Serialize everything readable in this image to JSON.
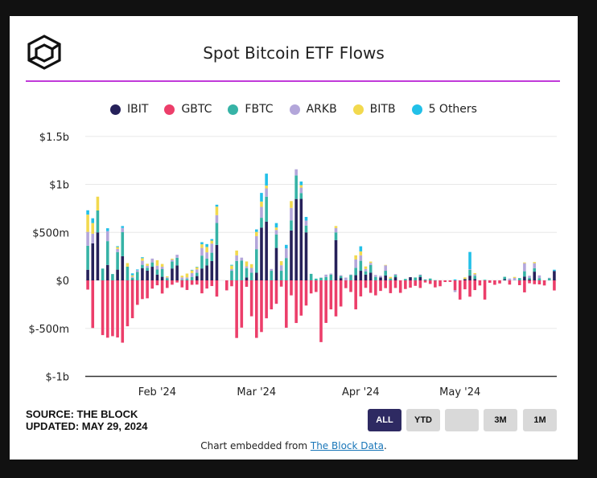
{
  "header": {
    "title": "Spot Bitcoin ETF Flows"
  },
  "legend": [
    {
      "label": "IBIT",
      "color": "#26215a"
    },
    {
      "label": "GBTC",
      "color": "#ec3e6a"
    },
    {
      "label": "FBTC",
      "color": "#36b3a6"
    },
    {
      "label": "ARKB",
      "color": "#b3a6da"
    },
    {
      "label": "BITB",
      "color": "#f2d94e"
    },
    {
      "label": "5 Others",
      "color": "#22c0e8"
    }
  ],
  "footer": {
    "source": "SOURCE: THE BLOCK",
    "updated": "UPDATED: MAY 29, 2024",
    "embed_prefix": "Chart embedded from ",
    "embed_link": "The Block Data",
    "embed_suffix": "."
  },
  "range_buttons": [
    "ALL",
    "YTD",
    "",
    "3M",
    "1M"
  ],
  "range_active": "ALL",
  "chart_data": {
    "type": "bar",
    "stacked": true,
    "title": "Spot Bitcoin ETF Flows",
    "units": "USD (m)",
    "ylim": [
      -1000,
      1500
    ],
    "yticks": [
      -1000,
      -500,
      0,
      500,
      1000,
      1500
    ],
    "ytick_labels": [
      "$-1b",
      "$-500m",
      "$0",
      "$500m",
      "$1b",
      "$1.5b"
    ],
    "xtick_labels": [
      {
        "label": "Feb '24",
        "index": 14
      },
      {
        "label": "Mar '24",
        "index": 34
      },
      {
        "label": "Apr '24",
        "index": 55
      },
      {
        "label": "May '24",
        "index": 75
      }
    ],
    "days": 95,
    "series_order": [
      "IBIT",
      "GBTC",
      "FBTC",
      "ARKB",
      "BITB",
      "5 Others"
    ],
    "series": [
      {
        "name": "IBIT",
        "values": [
          111,
          386,
          500,
          0,
          161,
          0,
          112,
          252,
          0,
          5,
          0,
          128,
          101,
          142,
          60,
          37,
          0,
          124,
          156,
          0,
          0,
          0,
          45,
          124,
          156,
          201,
          369,
          0,
          0,
          0,
          0,
          0,
          30,
          0,
          80,
          550,
          612,
          0,
          338,
          0,
          0,
          520,
          848,
          849,
          500,
          0,
          0,
          0,
          0,
          0,
          420,
          24,
          0,
          0,
          54,
          100,
          60,
          80,
          0,
          31,
          51,
          0,
          33,
          0,
          0,
          33,
          0,
          34,
          0,
          0,
          0,
          0,
          0,
          0,
          0,
          0,
          14,
          49,
          15,
          0,
          0,
          0,
          0,
          0,
          12,
          0,
          0,
          0,
          40,
          10,
          91,
          0,
          0,
          0,
          98
        ]
      },
      {
        "name": "GBTC",
        "values": [
          -96,
          -496,
          0,
          -570,
          -597,
          -581,
          -595,
          -649,
          -478,
          -394,
          -255,
          -195,
          -187,
          -86,
          -51,
          -137,
          -79,
          -45,
          -22,
          -73,
          -100,
          -46,
          -44,
          -135,
          -85,
          -59,
          -169,
          0,
          -104,
          -61,
          -600,
          -492,
          -67,
          -374,
          -599,
          -538,
          -395,
          -302,
          -244,
          -65,
          -493,
          -156,
          -444,
          -367,
          -262,
          -136,
          -121,
          -643,
          -443,
          -302,
          -375,
          -272,
          -81,
          -121,
          -302,
          -167,
          -78,
          -130,
          -156,
          -110,
          -81,
          -133,
          -79,
          -130,
          -90,
          -76,
          -57,
          -79,
          -22,
          -37,
          -73,
          -61,
          -17,
          -16,
          -103,
          -200,
          -93,
          -170,
          -101,
          -53,
          -200,
          -25,
          -46,
          -32,
          0,
          -44,
          0,
          -50,
          -125,
          -30,
          -40,
          -42,
          -53,
          0,
          -105
        ]
      },
      {
        "name": "FBTC",
        "values": [
          250,
          0,
          228,
          123,
          248,
          66,
          183,
          250,
          143,
          22,
          89,
          34,
          30,
          45,
          53,
          80,
          21,
          72,
          80,
          7,
          14,
          36,
          34,
          134,
          70,
          87,
          229,
          0,
          0,
          100,
          202,
          207,
          97,
          80,
          245,
          102,
          260,
          100,
          140,
          100,
          233,
          105,
          245,
          61,
          71,
          68,
          18,
          27,
          35,
          60,
          80,
          21,
          0,
          57,
          77,
          104,
          34,
          81,
          36,
          0,
          49,
          20,
          23,
          0,
          15,
          0,
          30,
          20,
          10,
          19,
          2,
          0,
          0,
          0,
          0,
          0,
          0,
          60,
          33,
          0,
          6,
          0,
          0,
          0,
          25,
          0,
          0,
          24,
          55,
          15,
          36,
          23,
          0,
          21,
          0
        ]
      },
      {
        "name": "ARKB",
        "values": [
          144,
          100,
          0,
          0,
          104,
          0,
          32,
          44,
          0,
          11,
          17,
          42,
          20,
          40,
          40,
          25,
          11,
          20,
          31,
          24,
          17,
          40,
          36,
          80,
          66,
          95,
          81,
          0,
          0,
          17,
          58,
          30,
          19,
          50,
          136,
          114,
          86,
          19,
          47,
          58,
          100,
          130,
          64,
          56,
          52,
          0,
          0,
          3,
          25,
          11,
          45,
          9,
          29,
          4,
          87,
          57,
          25,
          20,
          20,
          17,
          56,
          0,
          10,
          0,
          0,
          0,
          0,
          7,
          0,
          0,
          0,
          0,
          0,
          0,
          -19,
          0,
          0,
          7,
          15,
          0,
          0,
          0,
          0,
          0,
          0,
          19,
          25,
          0,
          84,
          23,
          52,
          29,
          0,
          6,
          0
        ]
      },
      {
        "name": "BITB",
        "values": [
          180,
          111,
          144,
          0,
          0,
          0,
          20,
          0,
          37,
          15,
          0,
          27,
          22,
          0,
          57,
          29,
          11,
          10,
          0,
          18,
          40,
          28,
          22,
          38,
          56,
          31,
          89,
          0,
          0,
          37,
          51,
          0,
          51,
          39,
          44,
          55,
          30,
          0,
          26,
          42,
          0,
          71,
          0,
          26,
          0,
          0,
          0,
          0,
          0,
          0,
          21,
          0,
          0,
          0,
          43,
          41,
          26,
          15,
          0,
          0,
          5,
          16,
          0,
          0,
          0,
          0,
          0,
          0,
          0,
          0,
          0,
          0,
          0,
          0,
          0,
          0,
          17,
          0,
          13,
          0,
          0,
          0,
          0,
          0,
          0,
          0,
          11,
          0,
          8,
          0,
          12,
          0,
          0,
          0,
          0
        ]
      },
      {
        "name": "5 Others",
        "values": [
          45,
          50,
          0,
          0,
          30,
          0,
          9,
          20,
          0,
          20,
          8,
          10,
          0,
          0,
          0,
          0,
          0,
          0,
          0,
          0,
          0,
          6,
          5,
          22,
          30,
          16,
          20,
          0,
          0,
          8,
          0,
          0,
          0,
          0,
          26,
          90,
          124,
          0,
          46,
          0,
          37,
          0,
          0,
          38,
          38,
          0,
          0,
          0,
          0,
          0,
          0,
          0,
          0,
          0,
          0,
          53,
          0,
          0,
          0,
          0,
          0,
          0,
          0,
          0,
          0,
          0,
          0,
          0,
          0,
          0,
          0,
          0,
          0,
          0,
          10,
          0,
          0,
          180,
          0,
          0,
          0,
          0,
          0,
          0,
          0,
          0,
          0,
          0,
          0,
          0,
          0,
          0,
          0,
          0,
          13
        ]
      }
    ]
  }
}
